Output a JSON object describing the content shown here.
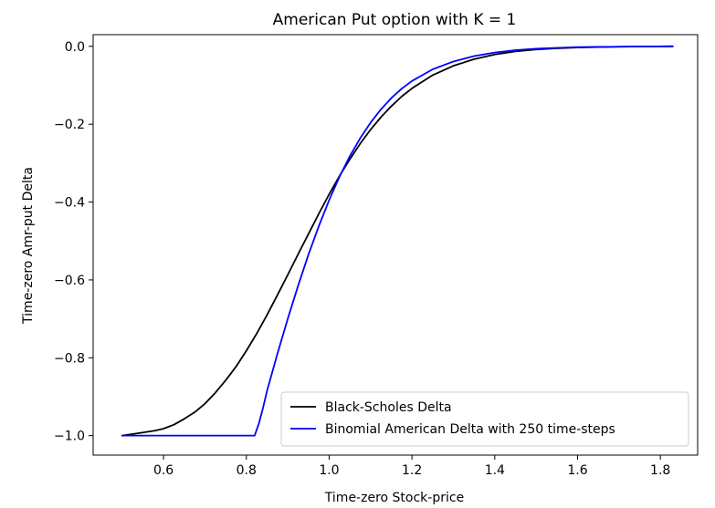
{
  "chart_data": {
    "type": "line",
    "title": "American Put option with K = 1",
    "xlabel": "Time-zero Stock-price",
    "ylabel": "Time-zero Amr-put Delta",
    "xlim": [
      0.43,
      1.89
    ],
    "ylim": [
      -1.05,
      0.03
    ],
    "xticks": [
      0.6,
      0.8,
      1.0,
      1.2,
      1.4,
      1.6,
      1.8
    ],
    "xtick_labels": [
      "0.6",
      "0.8",
      "1.0",
      "1.2",
      "1.4",
      "1.6",
      "1.8"
    ],
    "yticks": [
      0.0,
      -0.2,
      -0.4,
      -0.6,
      -0.8,
      -1.0
    ],
    "ytick_labels": [
      "0.0",
      "−0.2",
      "−0.4",
      "−0.6",
      "−0.8",
      "−1.0"
    ],
    "grid": false,
    "legend_position": "lower-right",
    "series": [
      {
        "name": "Black-Scholes Delta",
        "color": "#000000",
        "x": [
          0.5,
          0.55,
          0.58,
          0.6,
          0.625,
          0.65,
          0.675,
          0.7,
          0.725,
          0.75,
          0.775,
          0.8,
          0.825,
          0.85,
          0.875,
          0.9,
          0.925,
          0.95,
          0.975,
          1.0,
          1.025,
          1.05,
          1.075,
          1.1,
          1.125,
          1.15,
          1.175,
          1.2,
          1.25,
          1.3,
          1.35,
          1.4,
          1.45,
          1.5,
          1.55,
          1.6,
          1.65,
          1.7,
          1.75,
          1.83
        ],
        "y": [
          -1.0,
          -0.992,
          -0.987,
          -0.982,
          -0.972,
          -0.957,
          -0.94,
          -0.918,
          -0.89,
          -0.858,
          -0.823,
          -0.782,
          -0.738,
          -0.69,
          -0.639,
          -0.587,
          -0.534,
          -0.482,
          -0.43,
          -0.38,
          -0.333,
          -0.29,
          -0.25,
          -0.214,
          -0.182,
          -0.154,
          -0.129,
          -0.108,
          -0.074,
          -0.05,
          -0.033,
          -0.021,
          -0.013,
          -0.008,
          -0.005,
          -0.003,
          -0.002,
          -0.001,
          -0.0005,
          0.0
        ]
      },
      {
        "name": "Binomial American Delta with 250 time-steps",
        "color": "#0000ff",
        "x": [
          0.5,
          0.6,
          0.7,
          0.8,
          0.82,
          0.83,
          0.84,
          0.85,
          0.875,
          0.9,
          0.925,
          0.95,
          0.975,
          1.0,
          1.025,
          1.05,
          1.075,
          1.1,
          1.125,
          1.15,
          1.175,
          1.2,
          1.25,
          1.3,
          1.35,
          1.4,
          1.45,
          1.5,
          1.55,
          1.6,
          1.65,
          1.7,
          1.75,
          1.83
        ],
        "y": [
          -1.0,
          -1.0,
          -1.0,
          -1.0,
          -1.0,
          -0.97,
          -0.93,
          -0.885,
          -0.79,
          -0.7,
          -0.615,
          -0.535,
          -0.462,
          -0.395,
          -0.335,
          -0.282,
          -0.236,
          -0.196,
          -0.162,
          -0.133,
          -0.109,
          -0.089,
          -0.059,
          -0.039,
          -0.025,
          -0.016,
          -0.01,
          -0.006,
          -0.004,
          -0.002,
          -0.0015,
          -0.001,
          -0.0005,
          0.0
        ]
      }
    ]
  }
}
